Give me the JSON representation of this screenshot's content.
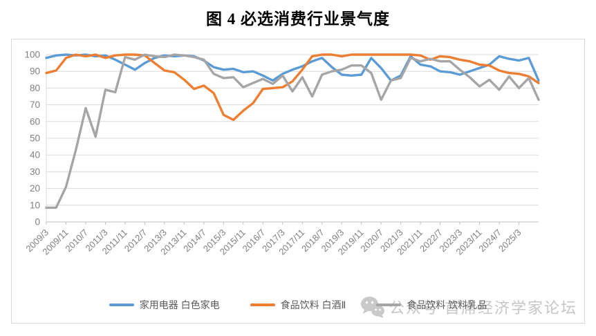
{
  "page": {
    "title": "图 4  必选消费行业景气度"
  },
  "chart_data": {
    "type": "line",
    "title": "图 4  必选消费行业景气度",
    "xlabel": "",
    "ylabel": "",
    "ylim": [
      0,
      100
    ],
    "yticks": [
      0,
      10,
      20,
      30,
      40,
      50,
      60,
      70,
      80,
      90,
      100
    ],
    "grid": "horizontal",
    "legend_position": "bottom",
    "x_label_every": 2,
    "x_labels": [
      "2009/3",
      "2009/11",
      "2010/7",
      "2011/3",
      "2011/11",
      "2012/7",
      "2013/3",
      "2013/11",
      "2014/7",
      "2015/3",
      "2015/11",
      "2016/7",
      "2017/3",
      "2017/11",
      "2018/7",
      "2019/3",
      "2019/11",
      "2020/7",
      "2021/3",
      "2021/11",
      "2022/7",
      "2023/3",
      "2023/11",
      "2024/7",
      "2025/3"
    ],
    "series": [
      {
        "name": "家用电器 白色家电",
        "color": "#5B9BD5",
        "values": [
          98,
          99.5,
          100,
          99.5,
          100,
          99,
          99.5,
          97,
          94,
          91,
          95,
          98,
          99.5,
          99,
          99.5,
          99,
          96.5,
          92.5,
          91,
          91.5,
          89.5,
          90,
          87.5,
          84.5,
          88.5,
          91,
          93,
          96,
          98,
          92.5,
          88,
          87.5,
          88,
          98,
          92,
          84.5,
          87.5,
          99,
          94,
          93,
          90,
          89.5,
          88,
          90,
          92,
          94,
          99,
          97.5,
          96.5,
          98,
          84.5
        ]
      },
      {
        "name": "食品饮料 白酒Ⅱ",
        "color": "#ED7D31",
        "values": [
          89,
          90.5,
          98,
          100,
          99,
          100,
          98,
          99.5,
          100,
          100,
          99.5,
          95,
          90.5,
          89.5,
          85,
          79.5,
          81.5,
          77,
          64,
          61,
          66.5,
          71,
          79.5,
          80,
          80.5,
          84,
          91,
          99,
          100,
          100,
          99,
          100,
          100,
          100,
          100,
          100,
          100,
          100,
          99.5,
          97,
          99,
          98.5,
          97,
          96,
          94,
          93.5,
          90.5,
          89,
          88.5,
          87,
          83
        ]
      },
      {
        "name": "食品饮料 饮料乳品",
        "color": "#A5A5A5",
        "values": [
          8.5,
          8.5,
          21,
          43,
          68,
          51,
          79,
          77.5,
          98.5,
          97,
          100,
          99,
          98.5,
          100,
          99.5,
          98.5,
          97,
          88.5,
          86,
          86.5,
          80.5,
          83,
          85.5,
          82.5,
          87.5,
          78,
          86.5,
          75,
          88,
          90,
          91,
          93.5,
          93.5,
          89,
          73,
          84.5,
          86,
          98,
          96,
          97.5,
          96,
          96,
          91,
          86.5,
          81,
          85,
          79,
          87,
          80,
          86,
          73
        ]
      }
    ]
  },
  "legend": {
    "items": [
      {
        "label": "家用电器 白色家电"
      },
      {
        "label": "食品饮料 白酒Ⅱ"
      },
      {
        "label": "食品饮料 饮料乳品"
      }
    ]
  },
  "watermark": {
    "icon": "wechat-icon",
    "text": "公众号 首席经济学家论坛"
  },
  "colors": {
    "series_blue": "#5B9BD5",
    "series_orange": "#ED7D31",
    "series_gray": "#A5A5A5",
    "gridline": "#D9D9D9",
    "axis_line": "#BFBFBF",
    "axis_text": "#7F7F7F",
    "watermark": "#C6C6C6"
  }
}
